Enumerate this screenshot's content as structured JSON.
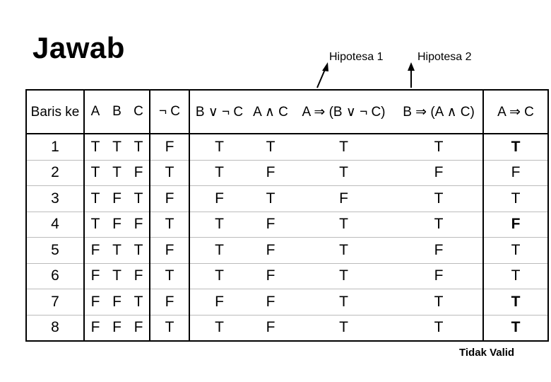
{
  "title": "Jawab",
  "hypothesis_labels": [
    "Hipotesa 1",
    "Hipotesa 2"
  ],
  "headers": [
    "Baris ke",
    "A",
    "B",
    "C",
    "¬ C",
    "B ∨ ¬ C",
    "A ∧ C",
    "A ⇒ (B ∨ ¬ C)",
    "B ⇒ (A ∧ C)",
    "A ⇒ C"
  ],
  "rows": [
    [
      "1",
      "T",
      "T",
      "T",
      "F",
      "T",
      "T",
      "T",
      "T",
      "T"
    ],
    [
      "2",
      "T",
      "T",
      "F",
      "T",
      "T",
      "F",
      "T",
      "F",
      "F"
    ],
    [
      "3",
      "T",
      "F",
      "T",
      "F",
      "F",
      "T",
      "F",
      "T",
      "T"
    ],
    [
      "4",
      "T",
      "F",
      "F",
      "T",
      "T",
      "F",
      "T",
      "T",
      "F"
    ],
    [
      "5",
      "F",
      "T",
      "T",
      "F",
      "T",
      "F",
      "T",
      "F",
      "T"
    ],
    [
      "6",
      "F",
      "T",
      "F",
      "T",
      "T",
      "F",
      "T",
      "F",
      "T"
    ],
    [
      "7",
      "F",
      "F",
      "T",
      "F",
      "F",
      "F",
      "T",
      "T",
      "T"
    ],
    [
      "8",
      "F",
      "F",
      "F",
      "T",
      "T",
      "F",
      "T",
      "T",
      "T"
    ]
  ],
  "bold_conclusion_rows": [
    1,
    4,
    7,
    8
  ],
  "verdict": "Tidak Valid"
}
